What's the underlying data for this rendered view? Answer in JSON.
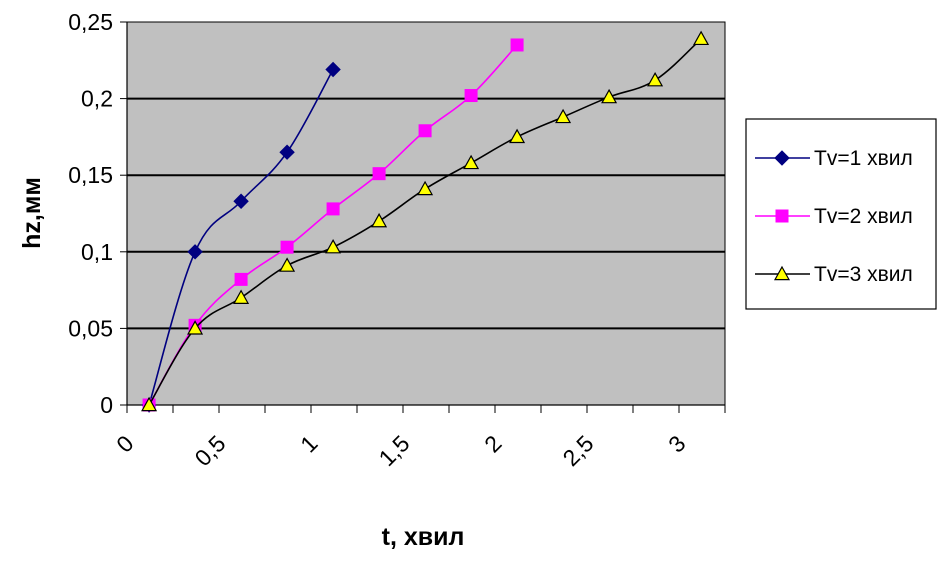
{
  "chart_data": {
    "type": "line",
    "xlabel": "t, хвил",
    "ylabel": "hz,мм",
    "xlim": [
      0,
      3.25
    ],
    "ylim": [
      0,
      0.25
    ],
    "x_ticks": [
      "0",
      "0,5",
      "1",
      "1,5",
      "2",
      "2,5",
      "3"
    ],
    "x_tick_values": [
      0,
      0.5,
      1,
      1.5,
      2,
      2.5,
      3
    ],
    "y_ticks": [
      "0",
      "0,05",
      "0,1",
      "0,15",
      "0,2",
      "0,25"
    ],
    "y_tick_values": [
      0,
      0.05,
      0.1,
      0.15,
      0.2,
      0.25
    ],
    "grid": "horizontal",
    "plot_background": "#c0c0c0",
    "legend_position": "right",
    "series": [
      {
        "name": "Tv=1 хвил",
        "color": "#000080",
        "marker": "diamond",
        "x": [
          0.12,
          0.37,
          0.62,
          0.87,
          1.12
        ],
        "y": [
          0,
          0.1,
          0.133,
          0.165,
          0.219
        ]
      },
      {
        "name": "Tv=2 хвил",
        "color": "#ff00ff",
        "marker": "square",
        "x": [
          0.12,
          0.37,
          0.62,
          0.87,
          1.12,
          1.37,
          1.62,
          1.87,
          2.12
        ],
        "y": [
          0,
          0.052,
          0.082,
          0.103,
          0.128,
          0.151,
          0.179,
          0.202,
          0.235
        ]
      },
      {
        "name": "Tv=3 хвил",
        "color": "#000000",
        "marker": "triangle",
        "marker_fill": "#ffff00",
        "x": [
          0.12,
          0.37,
          0.62,
          0.87,
          1.12,
          1.37,
          1.62,
          1.87,
          2.12,
          2.37,
          2.62,
          2.87,
          3.12
        ],
        "y": [
          0,
          0.05,
          0.07,
          0.091,
          0.103,
          0.12,
          0.141,
          0.158,
          0.175,
          0.188,
          0.201,
          0.212,
          0.239
        ]
      }
    ]
  }
}
